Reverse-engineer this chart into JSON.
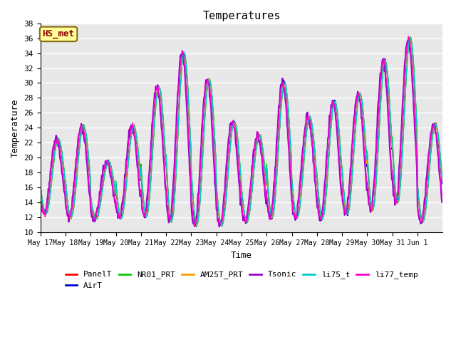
{
  "title": "Temperatures",
  "xlabel": "Time",
  "ylabel": "Temperature",
  "ylim": [
    10,
    38
  ],
  "annotation": "HS_met",
  "annotation_color": "#8B0000",
  "annotation_bg": "#FFFF99",
  "annotation_border": "#8B6914",
  "bg_color": "#E8E8E8",
  "grid_color": "white",
  "series": [
    {
      "name": "PanelT",
      "color": "#FF0000"
    },
    {
      "name": "AirT",
      "color": "#0000CC"
    },
    {
      "name": "NR01_PRT",
      "color": "#00CC00"
    },
    {
      "name": "AM25T_PRT",
      "color": "#FF9900"
    },
    {
      "name": "Tsonic",
      "color": "#9900CC"
    },
    {
      "name": "li75_t",
      "color": "#00CCCC"
    },
    {
      "name": "li77_temp",
      "color": "#FF00CC"
    }
  ],
  "n_days": 16,
  "samples_per_day": 48,
  "daily_mins": [
    12.5,
    12.0,
    11.8,
    12.0,
    12.2,
    11.5,
    11.0,
    11.0,
    11.5,
    12.0,
    12.0,
    11.8,
    12.5,
    13.0,
    14.0,
    11.5
  ],
  "daily_maxs": [
    22.5,
    24.3,
    19.5,
    24.2,
    29.5,
    34.0,
    30.5,
    24.8,
    23.0,
    30.0,
    25.5,
    27.5,
    28.5,
    33.0,
    36.0,
    24.5
  ],
  "tick_labels": [
    "May 17",
    "May 18",
    "May 19",
    "May 20",
    "May 21",
    "May 22",
    "May 23",
    "May 24",
    "May 25",
    "May 26",
    "May 27",
    "May 28",
    "May 29",
    "May 30",
    "May 31",
    "Jun 1"
  ],
  "font_family": "monospace"
}
